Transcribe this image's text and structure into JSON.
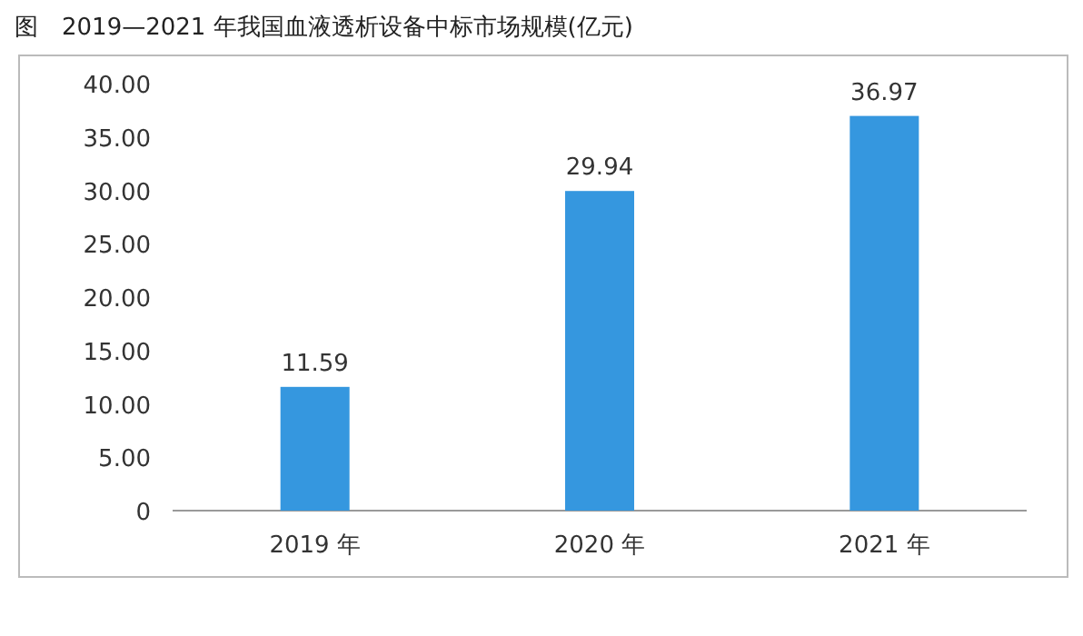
{
  "chart_data": {
    "type": "bar",
    "title": "图　2019—2021 年我国血液透析设备中标市场规模(亿元)",
    "categories": [
      "2019 年",
      "2020 年",
      "2021 年"
    ],
    "values": [
      11.59,
      29.94,
      36.97
    ],
    "color": "#3597df",
    "ylim": [
      0,
      40
    ],
    "yticks": [
      0,
      {
        "value": 5,
        "label": "5.00"
      },
      {
        "value": 10,
        "label": "10.00"
      },
      {
        "value": 15,
        "label": "15.00"
      },
      {
        "value": 20,
        "label": "20.00"
      },
      {
        "value": 25,
        "label": "25.00"
      },
      {
        "value": 30,
        "label": "30.00"
      },
      {
        "value": 35,
        "label": "35.00"
      },
      {
        "value": 40,
        "label": "40.00"
      }
    ],
    "data_labels": true
  }
}
